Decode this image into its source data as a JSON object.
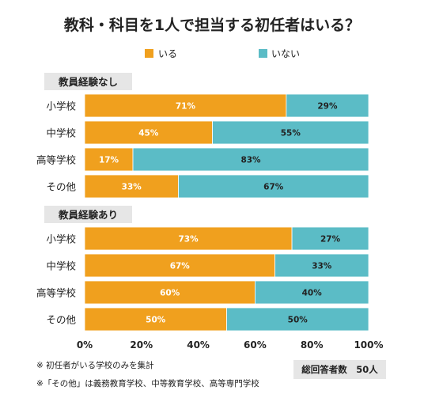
{
  "chart_data": {
    "type": "bar",
    "orientation": "horizontal",
    "stacked": true,
    "title": "教科・科目を1人で担当する初任者はいる？",
    "legend": [
      {
        "name": "いる",
        "color": "#f0a01e"
      },
      {
        "name": "いない",
        "color": "#5bbcc6"
      }
    ],
    "legend_position": "top",
    "xlim": [
      0,
      100
    ],
    "x_ticks": [
      "0%",
      "20%",
      "40%",
      "60%",
      "80%",
      "100%"
    ],
    "grid": false,
    "groups": [
      {
        "label": "教員経験なし",
        "categories": [
          "小学校",
          "中学校",
          "高等学校",
          "その他"
        ],
        "series": [
          {
            "name": "いる",
            "values": [
              71,
              45,
              17,
              33
            ]
          },
          {
            "name": "いない",
            "values": [
              29,
              55,
              83,
              67
            ]
          }
        ]
      },
      {
        "label": "教員経験あり",
        "categories": [
          "小学校",
          "中学校",
          "高等学校",
          "その他"
        ],
        "series": [
          {
            "name": "いる",
            "values": [
              73,
              67,
              60,
              50
            ]
          },
          {
            "name": "いない",
            "values": [
              27,
              33,
              40,
              50
            ]
          }
        ]
      }
    ],
    "value_suffix": "%"
  },
  "notes": [
    "※ 初任者がいる学校のみを集計",
    "※「その他」は義務教育学校、中等教育学校、高等専門学校"
  ],
  "total_label": "総回答者数　50人",
  "colors": {
    "yes": "#f0a01e",
    "no": "#5bbcc6",
    "group_bg": "#e6e6e6",
    "total_bg": "#e6e6e6"
  }
}
